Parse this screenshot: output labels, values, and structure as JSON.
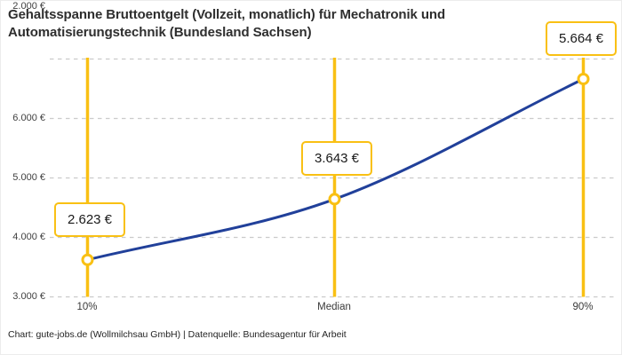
{
  "title": {
    "lines": [
      "Gehaltsspanne Bruttoentgelt (Vollzeit, monatlich) für Mechatronik und",
      "Automatisierungstechnik (Bundesland Sachsen)"
    ]
  },
  "footer": {
    "credit": "Chart: gute-jobs.de (Wollmilchsau GmbH) | Datenquelle: Bundesagentur für Arbeit"
  },
  "chart_data": {
    "type": "line",
    "title": "Gehaltsspanne Bruttoentgelt (Vollzeit, monatlich) für Mechatronik und Automatisierungstechnik (Bundesland Sachsen)",
    "categories": [
      "10%",
      "Median",
      "90%"
    ],
    "values": [
      2623,
      3643,
      5664
    ],
    "value_labels": [
      "2.623 €",
      "3.643 €",
      "5.664 €"
    ],
    "y_tick_labels": [
      "6.000 €",
      "5.000 €",
      "4.000 €",
      "3.000 €",
      "2.000 €"
    ],
    "y_tick_values": [
      6000,
      5000,
      4000,
      3000,
      2000
    ],
    "ylim": [
      2000,
      6000
    ],
    "xlabel": "",
    "ylabel": "",
    "grid": "horizontal-dashed",
    "legend": "none",
    "colors": {
      "line": "#21409A",
      "accent": "#F9C013",
      "marker_fill": "#FFFFFF",
      "grid": "#CBCBCB"
    }
  }
}
